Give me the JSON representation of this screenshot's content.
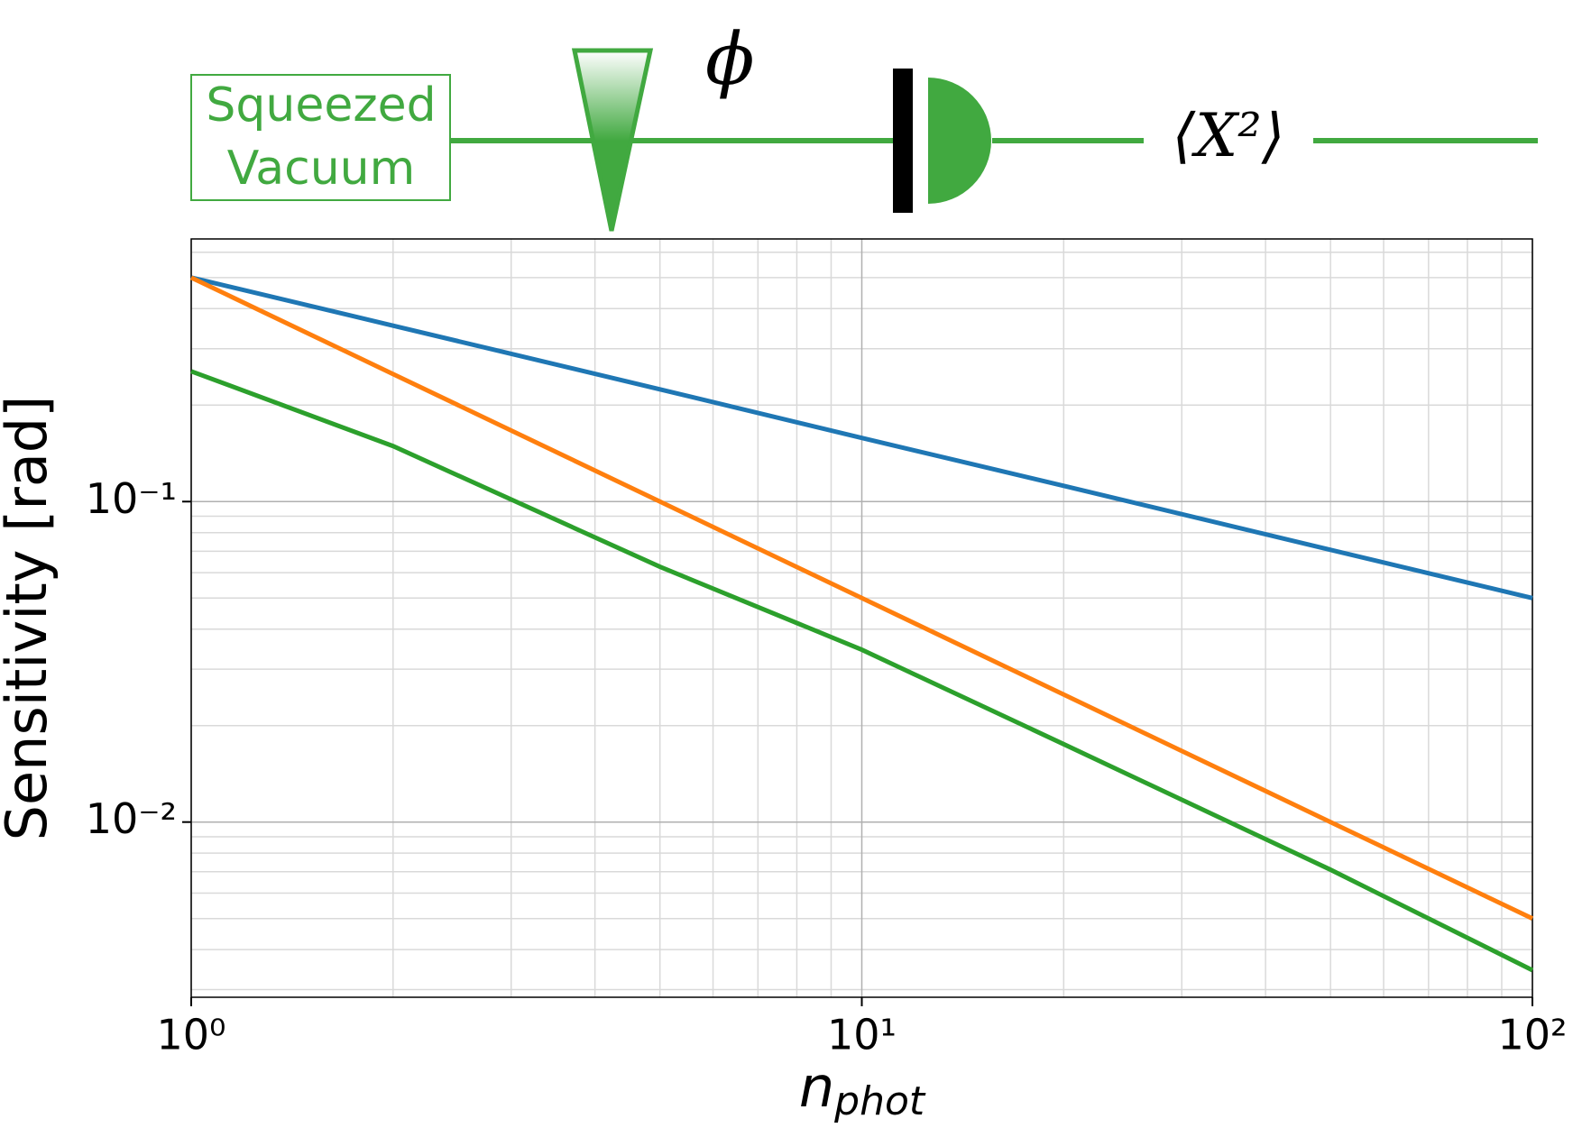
{
  "diagram": {
    "source": "Squeezed Vacuum",
    "phase": "ϕ",
    "measurement": "⟨X²⟩"
  },
  "chart_data": {
    "type": "line",
    "x_label": "n",
    "x_label_subscript": "phot",
    "y_label": "Sensitivity [rad]",
    "x": [
      1,
      2,
      5,
      10,
      20,
      50,
      100
    ],
    "series": [
      {
        "color": "#1f77b4",
        "values": [
          0.5,
          0.354,
          0.224,
          0.158,
          0.112,
          0.0707,
          0.05
        ]
      },
      {
        "color": "#ff7f0e",
        "values": [
          0.5,
          0.25,
          0.1,
          0.05,
          0.025,
          0.01,
          0.005
        ]
      },
      {
        "color": "#2ca02c",
        "values": [
          0.255,
          0.149,
          0.0626,
          0.0345,
          0.0175,
          0.0071,
          0.00345
        ]
      }
    ],
    "xlog": true,
    "ylog": true,
    "xlim": [
      1,
      100
    ],
    "ylim": [
      0.00284,
      0.66
    ],
    "xticks": [
      {
        "value": 1,
        "label": "10⁰"
      },
      {
        "value": 10,
        "label": "10¹"
      },
      {
        "value": 100,
        "label": "10²"
      }
    ],
    "yticks": [
      {
        "value": 0.01,
        "label": "10⁻²"
      },
      {
        "value": 0.1,
        "label": "10⁻¹"
      }
    ],
    "xticks_minor": [
      2,
      3,
      4,
      5,
      6,
      7,
      8,
      9,
      20,
      30,
      40,
      50,
      60,
      70,
      80,
      90
    ],
    "yticks_minor": [
      0.003,
      0.004,
      0.005,
      0.006,
      0.007,
      0.008,
      0.009,
      0.02,
      0.03,
      0.04,
      0.05,
      0.06,
      0.07,
      0.08,
      0.09,
      0.2,
      0.3,
      0.4,
      0.5,
      0.6
    ],
    "grid": true
  }
}
